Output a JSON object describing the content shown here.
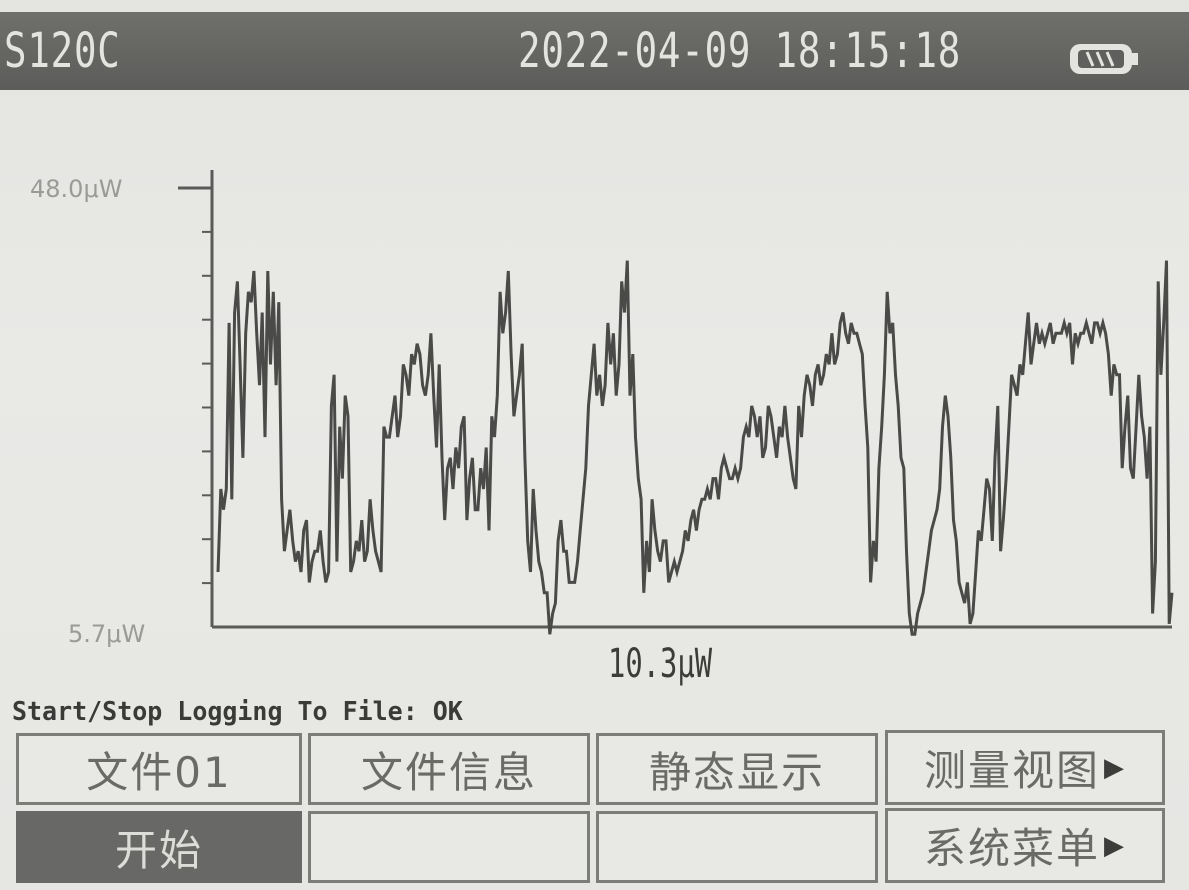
{
  "header": {
    "model": "S120C",
    "datetime": "2022-04-09 18:15:18",
    "battery_icon": "battery-full-icon"
  },
  "chart_data": {
    "type": "line",
    "ylim": [
      5.7,
      48.0
    ],
    "y_tick_labels": [
      "48.0μW",
      "5.7μW"
    ],
    "cursor_label": "10.3μW",
    "series": [
      {
        "values": [
          11,
          19,
          17,
          19,
          35,
          18,
          36,
          39,
          31,
          22,
          34,
          38,
          37,
          40,
          34,
          29,
          36,
          24,
          40,
          31,
          38,
          29,
          37,
          18,
          13,
          15,
          17,
          14,
          12,
          13,
          11,
          15,
          16,
          10,
          12,
          13,
          13,
          15,
          12,
          10,
          11,
          27,
          30,
          12,
          25,
          20,
          28,
          26,
          11,
          12,
          14,
          13,
          16,
          12,
          13,
          18,
          15,
          13,
          12,
          11,
          25,
          24,
          24,
          26,
          28,
          24,
          26,
          31,
          30,
          28,
          32,
          31,
          33,
          32,
          29,
          28,
          30,
          34,
          28,
          23,
          31,
          22,
          16,
          21,
          22,
          19,
          23,
          21,
          25,
          26,
          16,
          20,
          22,
          17,
          17,
          21,
          19,
          23,
          15,
          26,
          24,
          28,
          38,
          34,
          36,
          40,
          32,
          26,
          28,
          30,
          33,
          22,
          14,
          11,
          19,
          15,
          12,
          11,
          9,
          9,
          5,
          7,
          8,
          14,
          16,
          13,
          13,
          10,
          10,
          10,
          12,
          15,
          18,
          21,
          27,
          30,
          33,
          28,
          30,
          27,
          29,
          35,
          31,
          34,
          28,
          31,
          39,
          36,
          41,
          28,
          32,
          24,
          20,
          18,
          9,
          14,
          11,
          18,
          15,
          13,
          12,
          14,
          14,
          10,
          11,
          12,
          11,
          12,
          13,
          15,
          14,
          16,
          17,
          15,
          17,
          18,
          18,
          19,
          18,
          20,
          20,
          18,
          21,
          22,
          21,
          20,
          20,
          21,
          20,
          21,
          24,
          25,
          24,
          27,
          26,
          24,
          26,
          22,
          23,
          27,
          26,
          24,
          22,
          25,
          24,
          27,
          24,
          22,
          20,
          19,
          27,
          24,
          28,
          30,
          29,
          27,
          30,
          31,
          29,
          30,
          32,
          31,
          34,
          31,
          32,
          35,
          36,
          34,
          33,
          35,
          34,
          34,
          33,
          32,
          27,
          23,
          10,
          14,
          12,
          21,
          25,
          30,
          38,
          34,
          35,
          30,
          27,
          22,
          21,
          13,
          7,
          5,
          5,
          7,
          8,
          9,
          11,
          13,
          15,
          16,
          17,
          19,
          25,
          28,
          26,
          22,
          16,
          14,
          10,
          9,
          8,
          10,
          6,
          7,
          11,
          15,
          14,
          17,
          20,
          19,
          14,
          22,
          27,
          13,
          16,
          20,
          25,
          30,
          29,
          28,
          31,
          30,
          33,
          36,
          31,
          33,
          35,
          33,
          34,
          33,
          34,
          35,
          33,
          34,
          34,
          34,
          35,
          34,
          35,
          31,
          34,
          33,
          34,
          34,
          35,
          34,
          33,
          35,
          35,
          34,
          35,
          34,
          32,
          28,
          31,
          30,
          30,
          21,
          25,
          28,
          21,
          20,
          25,
          30,
          26,
          24,
          20,
          25,
          7,
          12,
          39,
          30,
          35,
          41,
          6,
          9
        ]
      }
    ]
  },
  "status": {
    "text": "Start/Stop Logging To File: OK"
  },
  "menu": {
    "row1": [
      {
        "label": "文件01"
      },
      {
        "label": "文件信息"
      },
      {
        "label": "静态显示"
      },
      {
        "label": "测量视图"
      }
    ],
    "row2": [
      {
        "label": "开始"
      },
      {
        "label": ""
      },
      {
        "label": ""
      },
      {
        "label": "系统菜单"
      }
    ]
  }
}
